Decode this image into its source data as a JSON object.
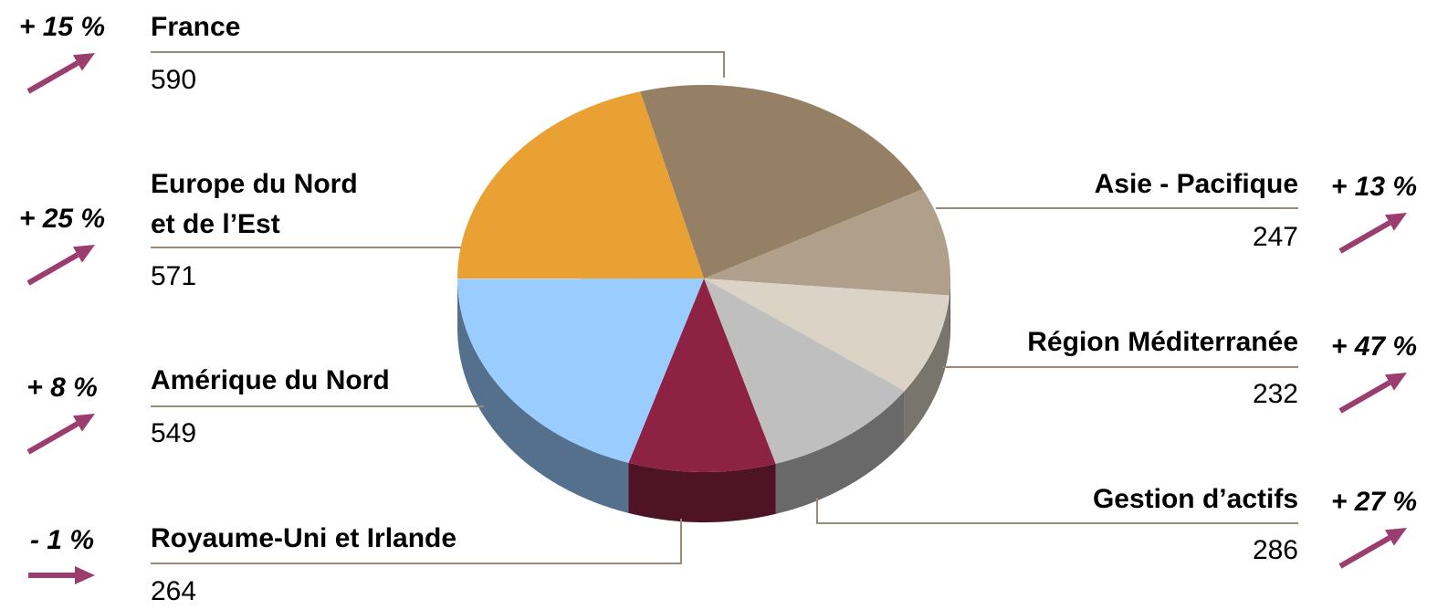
{
  "chart_data": {
    "type": "pie",
    "categories": [
      "France",
      "Asie - Pacifique",
      "Région Méditerranée",
      "Gestion d’actifs",
      "Royaume-Uni et Irlande",
      "Amérique du Nord",
      "Europe du Nord\net de l’Est"
    ],
    "values": [
      590,
      247,
      232,
      286,
      264,
      549,
      571
    ],
    "colors": [
      "#958066",
      "#b0a08b",
      "#dbd4c6",
      "#bfbfbf",
      "#8e2244",
      "#99ccff",
      "#eaa134"
    ],
    "changes": [
      15,
      13,
      47,
      27,
      -1,
      8,
      25
    ],
    "change_labels": [
      "+ 15 %",
      "+ 13 %",
      "+ 47 %",
      "+ 27 %",
      "- 1 %",
      "+ 8 %",
      "+ 25 %"
    ],
    "arrow_color": "#9b3d6e",
    "leader_color": "#9b8a78"
  }
}
